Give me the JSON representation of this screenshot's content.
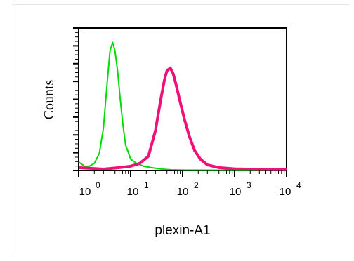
{
  "chart_data": {
    "type": "line",
    "xlabel": "plexin-A1",
    "ylabel": "Counts",
    "xscale": "log",
    "xlim": [
      1,
      10000
    ],
    "ylim": [
      0,
      100
    ],
    "grid": false,
    "x_ticks": [
      {
        "base": "10",
        "exp": "0",
        "value": 1
      },
      {
        "base": "10",
        "exp": "1",
        "value": 10
      },
      {
        "base": "10",
        "exp": "2",
        "value": 100
      },
      {
        "base": "10",
        "exp": "3",
        "value": 1000
      },
      {
        "base": "10",
        "exp": "4",
        "value": 10000
      }
    ],
    "series": [
      {
        "color": "#00dd00",
        "points": [
          [
            1.0,
            6
          ],
          [
            1.3,
            3
          ],
          [
            1.6,
            3
          ],
          [
            2.0,
            5
          ],
          [
            2.5,
            12
          ],
          [
            3.0,
            30
          ],
          [
            3.5,
            60
          ],
          [
            4.0,
            84
          ],
          [
            4.5,
            90
          ],
          [
            5.0,
            84
          ],
          [
            5.6,
            70
          ],
          [
            6.3,
            50
          ],
          [
            7.1,
            32
          ],
          [
            8.0,
            18
          ],
          [
            10,
            8
          ],
          [
            13,
            5
          ],
          [
            18,
            3
          ],
          [
            25,
            2
          ],
          [
            40,
            1
          ],
          [
            60,
            0.5
          ],
          [
            100,
            0.3
          ],
          [
            1000,
            0.2
          ],
          [
            10000,
            0.2
          ]
        ]
      },
      {
        "color": "#ee1177",
        "points": [
          [
            1.0,
            2
          ],
          [
            3,
            1
          ],
          [
            6,
            2
          ],
          [
            10,
            3
          ],
          [
            15,
            5
          ],
          [
            22,
            10
          ],
          [
            30,
            28
          ],
          [
            38,
            50
          ],
          [
            45,
            64
          ],
          [
            50,
            70
          ],
          [
            58,
            72
          ],
          [
            66,
            68
          ],
          [
            75,
            60
          ],
          [
            90,
            48
          ],
          [
            110,
            35
          ],
          [
            135,
            24
          ],
          [
            170,
            14
          ],
          [
            220,
            8
          ],
          [
            300,
            4
          ],
          [
            500,
            2
          ],
          [
            1000,
            1.2
          ],
          [
            3000,
            0.8
          ],
          [
            10000,
            0.6
          ]
        ]
      }
    ]
  }
}
